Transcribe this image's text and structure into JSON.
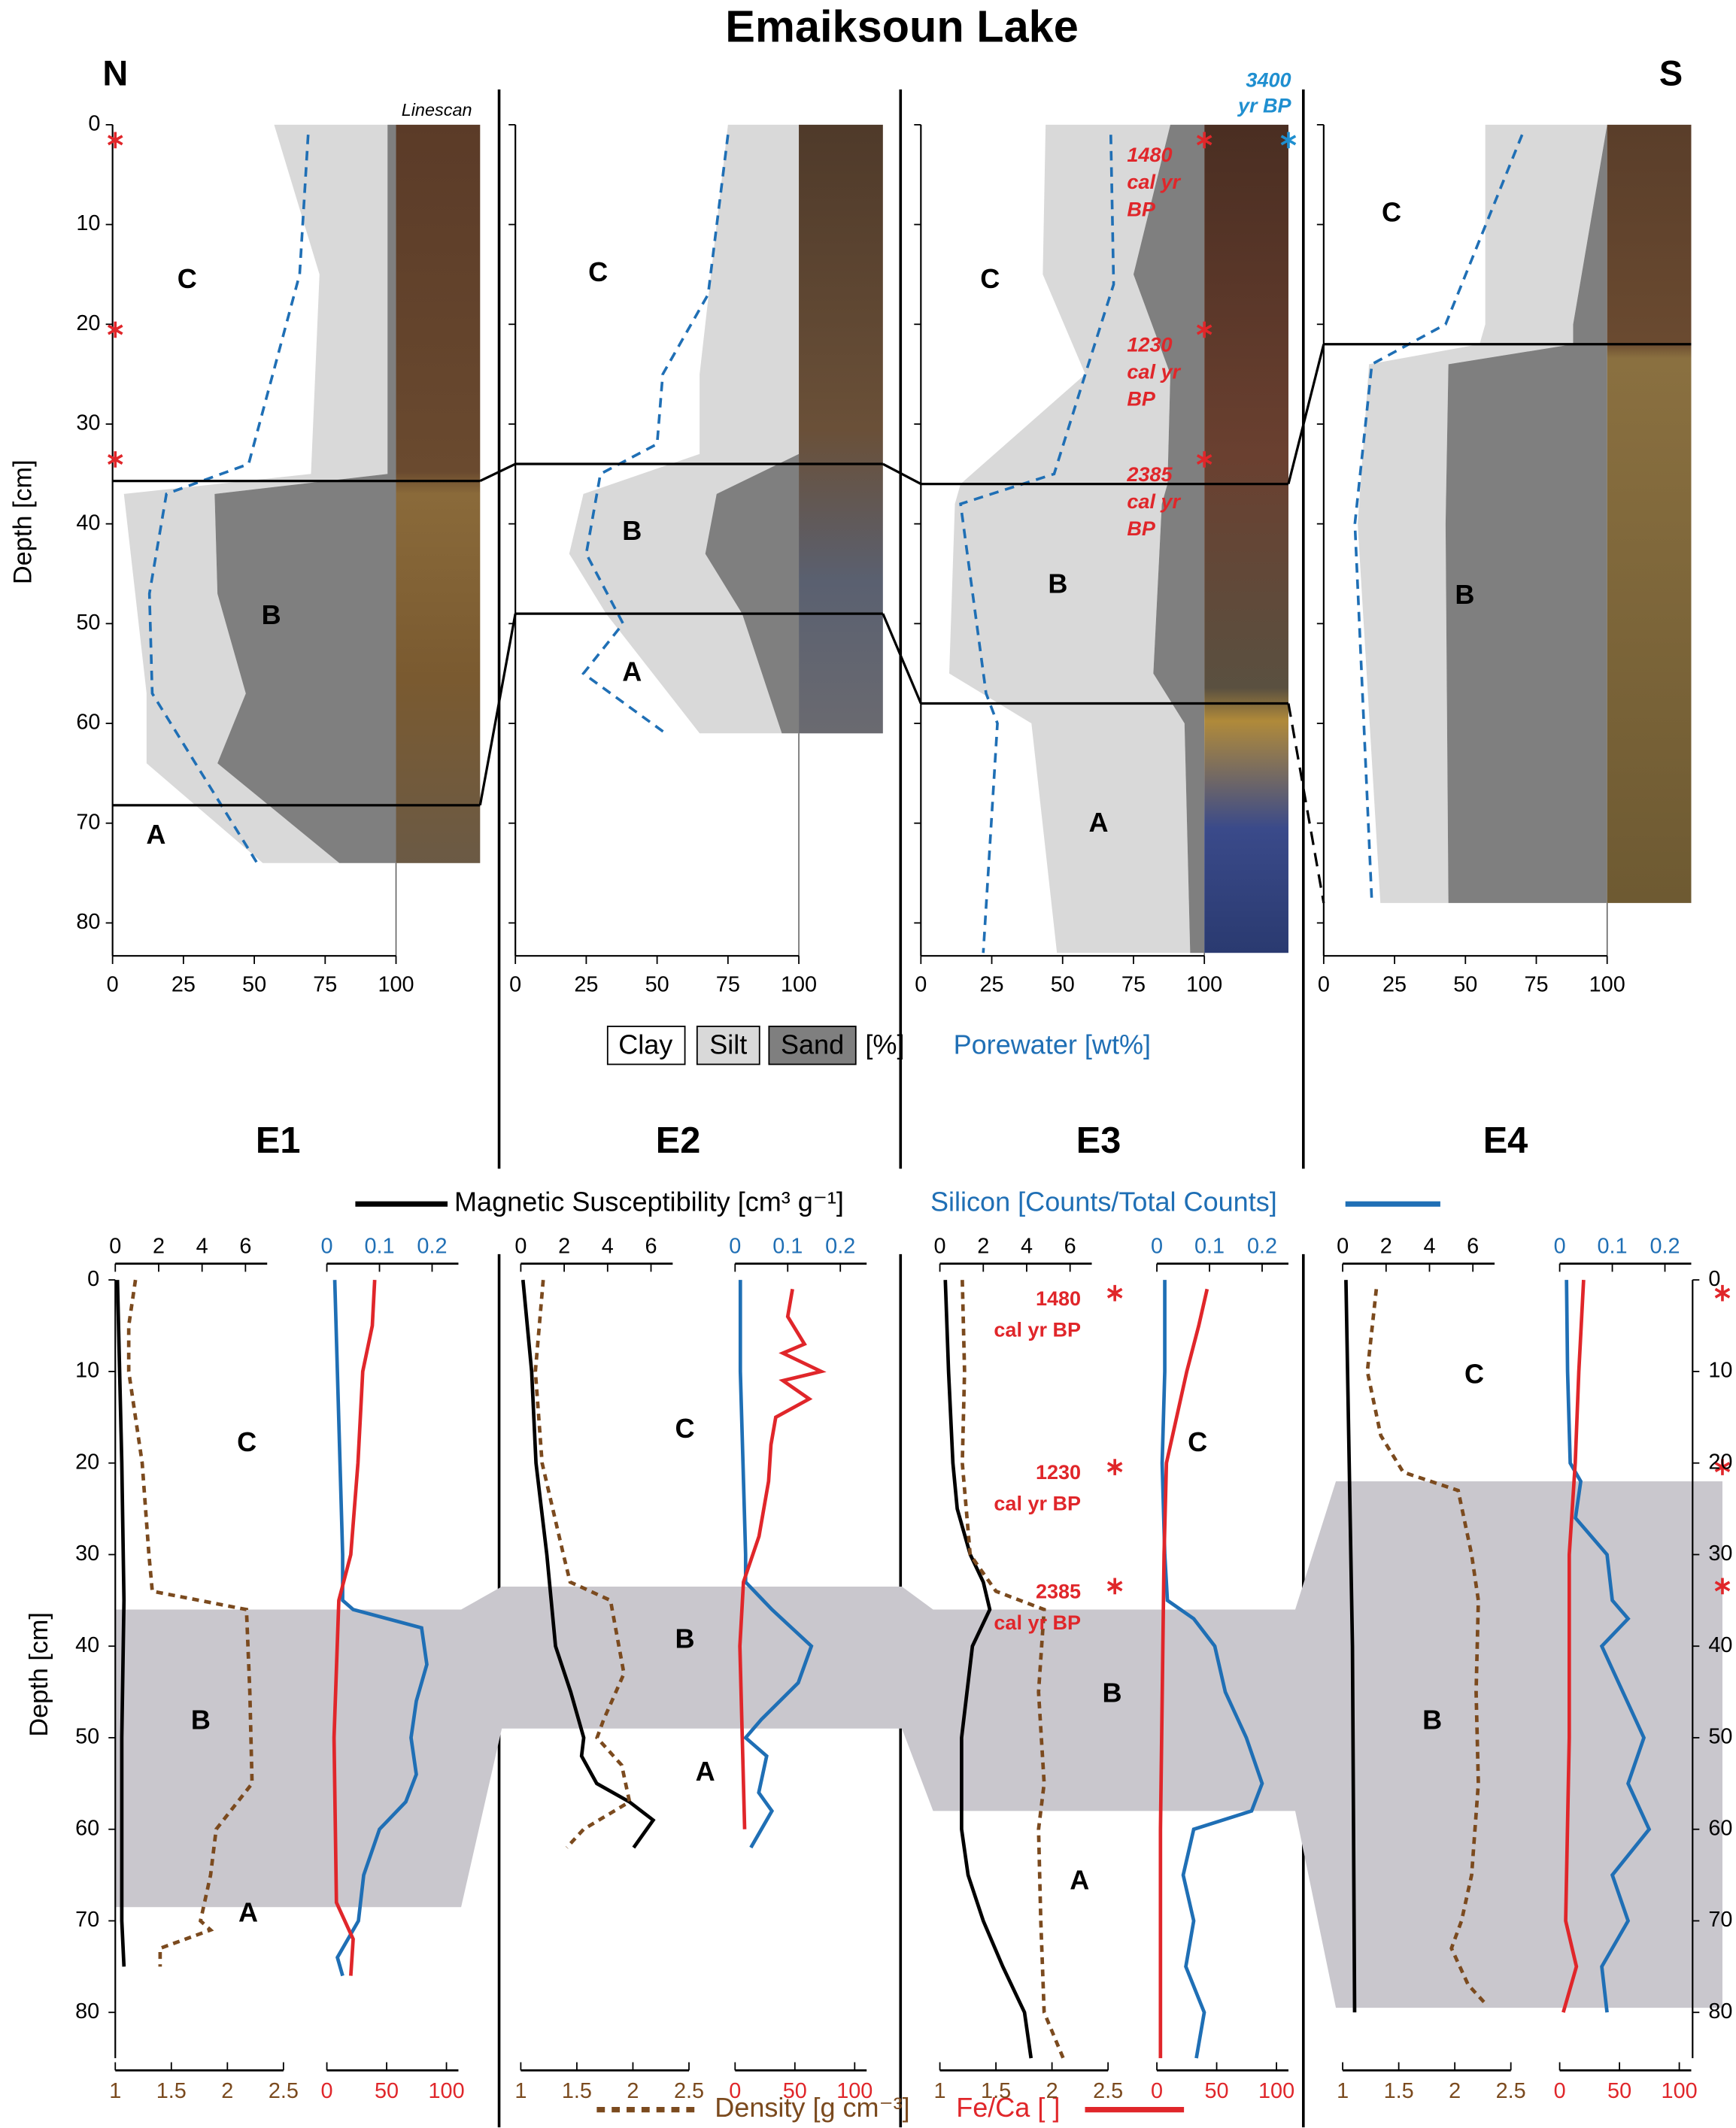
{
  "chart_data": {
    "type": "core_profiles",
    "title": "Emaiksoun Lake",
    "north": "N",
    "south": "S",
    "linescan": "Linescan",
    "top": {
      "y_label": "Depth [cm]",
      "xlim": [
        0,
        100
      ],
      "xticks": [
        0,
        25,
        50,
        75,
        100
      ],
      "ylim": [
        0,
        83.3
      ],
      "yticks": [
        0,
        10,
        20,
        30,
        40,
        50,
        60,
        70,
        80
      ],
      "legend": {
        "clay": "Clay",
        "silt": "Silt",
        "sand": "Sand",
        "unit": "[%]",
        "porewater": "Porewater [wt%]"
      },
      "colors": {
        "clay": "#ffffff",
        "silt": "#d9d9d9",
        "sand": "#7f7f7f",
        "porewater": "#1f6fb5",
        "date": "#e0262a",
        "date_blue": "#1f8fd0"
      },
      "cores": [
        {
          "name": "E1",
          "depths": [
            0,
            15,
            35,
            37,
            47,
            57,
            64,
            74
          ],
          "clay": [
            57,
            73,
            70,
            4,
            8,
            12,
            12,
            53
          ],
          "silt": [
            40,
            24,
            27,
            32,
            29,
            35,
            25,
            27
          ],
          "sand": [
            3,
            3,
            3,
            64,
            63,
            53,
            63,
            20
          ],
          "porewater_depths": [
            1,
            15,
            34,
            37,
            47,
            57,
            74
          ],
          "porewater": [
            69,
            66,
            48,
            19,
            13,
            14,
            51
          ],
          "boundaries": [
            35.7,
            68.2
          ],
          "zones": [
            "C",
            "B",
            "A"
          ],
          "dates": [
            {
              "depth": 1
            },
            {
              "depth": 20
            },
            {
              "depth": 33
            }
          ]
        },
        {
          "name": "E2",
          "depths": [
            0,
            25,
            33,
            37,
            43,
            49,
            61
          ],
          "clay": [
            75,
            65,
            65,
            24,
            19,
            32,
            65
          ],
          "silt": [
            25,
            35,
            35,
            47,
            48,
            48,
            29
          ],
          "sand": [
            0,
            0,
            0,
            29,
            33,
            20,
            6
          ],
          "porewater_depths": [
            1,
            17,
            25,
            32,
            35,
            43,
            50,
            55,
            61
          ],
          "porewater": [
            75,
            68,
            52,
            50,
            30,
            25,
            38,
            24,
            53
          ],
          "boundaries": [
            34,
            49
          ],
          "zones": [
            "C",
            "B",
            "A"
          ],
          "dates": []
        },
        {
          "name": "E3",
          "depths": [
            0,
            15,
            25,
            36,
            38,
            55,
            60,
            83
          ],
          "clay": [
            44,
            43,
            58,
            14,
            12,
            10,
            39,
            48
          ],
          "silt": [
            44,
            32,
            30,
            73,
            73,
            72,
            54,
            47
          ],
          "sand": [
            12,
            25,
            12,
            13,
            15,
            18,
            7,
            5
          ],
          "porewater_depths": [
            1,
            16,
            25,
            35,
            38,
            57,
            60,
            83
          ],
          "porewater": [
            67,
            68,
            58,
            47,
            14,
            23,
            27,
            22
          ],
          "boundaries": [
            36,
            58
          ],
          "zones": [
            "C",
            "B",
            "A"
          ],
          "dates": [
            {
              "depth": 1,
              "lines": [
                "1480",
                "cal yr",
                "BP"
              ]
            },
            {
              "depth": 20,
              "lines": [
                "1230",
                "cal yr",
                "BP"
              ]
            },
            {
              "depth": 33,
              "lines": [
                "2385",
                "cal yr",
                "BP"
              ]
            }
          ],
          "blue_date": {
            "depth": 1,
            "lines": [
              "3400",
              "yr BP"
            ]
          }
        },
        {
          "name": "E4",
          "depths": [
            0,
            20,
            22,
            24,
            40,
            78
          ],
          "clay": [
            57,
            57,
            55,
            16,
            12,
            20
          ],
          "silt": [
            43,
            31,
            33,
            28,
            31,
            24
          ],
          "sand": [
            0,
            12,
            12,
            56,
            57,
            56
          ],
          "porewater_depths": [
            1,
            20,
            24,
            40,
            78
          ],
          "porewater": [
            70,
            43,
            17,
            11,
            17
          ],
          "boundaries": [
            22
          ],
          "zones": [
            "C",
            "B"
          ],
          "dates": []
        }
      ]
    },
    "bottom": {
      "y_label": "Depth [cm]",
      "ylim": [
        0,
        85
      ],
      "yticks": [
        0,
        10,
        20,
        30,
        40,
        50,
        60,
        70,
        80
      ],
      "ms_lim": [
        0,
        7
      ],
      "ms_ticks": [
        0,
        2,
        4,
        6
      ],
      "density_lim": [
        1,
        2.5
      ],
      "density_ticks": [
        1,
        1.5,
        2,
        2.5
      ],
      "si_lim": [
        0,
        0.25
      ],
      "si_ticks": [
        0,
        0.1,
        0.2
      ],
      "feca_lim": [
        0,
        110
      ],
      "feca_ticks": [
        0,
        50,
        100
      ],
      "legend": {
        "ms": "Magnetic Susceptibility [cm³ g⁻¹]",
        "si": "Silicon [Counts/Total Counts]",
        "density": "Density [g cm⁻³]",
        "feca": "Fe/Ca [ ]"
      },
      "colors": {
        "ms": "#000000",
        "si": "#1f6fb5",
        "density": "#7b4a1e",
        "feca": "#e0262a",
        "zone": "#c9c7cd",
        "date": "#e0262a"
      },
      "cores": [
        {
          "zone": [
            36,
            68.5
          ],
          "zones": [
            "C",
            "B",
            "A"
          ],
          "ms": {
            "depths": [
              0,
              20,
              35,
              50,
              70,
              75
            ],
            "values": [
              0.1,
              0.3,
              0.4,
              0.3,
              0.3,
              0.4
            ]
          },
          "density": {
            "depths": [
              0,
              5,
              10,
              20,
              30,
              34,
              36,
              45,
              55,
              60,
              65,
              70,
              71,
              73,
              75
            ],
            "values": [
              1.18,
              1.12,
              1.12,
              1.24,
              1.3,
              1.33,
              2.17,
              2.2,
              2.22,
              1.9,
              1.85,
              1.76,
              1.85,
              1.4,
              1.4
            ]
          },
          "si": {
            "depths": [
              0,
              10,
              20,
              30,
              35,
              36,
              38,
              42,
              46,
              50,
              54,
              57,
              60,
              65,
              70,
              74,
              76
            ],
            "values": [
              0.015,
              0.02,
              0.025,
              0.03,
              0.03,
              0.05,
              0.18,
              0.19,
              0.17,
              0.16,
              0.17,
              0.15,
              0.1,
              0.07,
              0.06,
              0.02,
              0.03
            ]
          },
          "feca": {
            "depths": [
              0,
              5,
              10,
              20,
              30,
              35,
              50,
              68,
              72,
              76
            ],
            "values": [
              40,
              38,
              30,
              26,
              20,
              10,
              6,
              8,
              22,
              20
            ]
          },
          "dates": []
        },
        {
          "zone": [
            33.5,
            49
          ],
          "zones": [
            "C",
            "B",
            "A"
          ],
          "ms": {
            "depths": [
              0,
              10,
              20,
              30,
              35,
              40,
              45,
              50,
              52,
              55,
              57,
              59,
              62
            ],
            "values": [
              0.1,
              0.5,
              0.7,
              1.2,
              1.4,
              1.6,
              2.3,
              2.9,
              2.8,
              3.5,
              5,
              6.1,
              5.2
            ]
          },
          "density": {
            "depths": [
              0,
              10,
              20,
              30,
              33,
              35,
              43,
              48,
              50,
              53,
              57,
              60,
              62
            ],
            "values": [
              1.2,
              1.13,
              1.19,
              1.38,
              1.44,
              1.8,
              1.92,
              1.74,
              1.68,
              1.9,
              1.97,
              1.56,
              1.41
            ]
          },
          "si": {
            "depths": [
              0,
              10,
              20,
              30,
              33,
              36,
              40,
              44,
              48,
              50,
              52,
              56,
              58,
              62
            ],
            "values": [
              0.01,
              0.01,
              0.015,
              0.02,
              0.02,
              0.07,
              0.145,
              0.12,
              0.05,
              0.02,
              0.06,
              0.045,
              0.07,
              0.03
            ]
          },
          "feca": {
            "depths": [
              1,
              4,
              7,
              8,
              10,
              11,
              13,
              15,
              18,
              22,
              28,
              33,
              40,
              50,
              60
            ],
            "values": [
              48,
              44,
              58,
              40,
              72,
              40,
              62,
              34,
              30,
              28,
              20,
              7,
              4,
              6,
              8
            ]
          },
          "dates": []
        },
        {
          "zone": [
            36,
            58
          ],
          "zones": [
            "C",
            "B",
            "A"
          ],
          "ms": {
            "depths": [
              0,
              10,
              20,
              25,
              30,
              33,
              36,
              40,
              50,
              60,
              65,
              70,
              75,
              80,
              85
            ],
            "values": [
              0.25,
              0.4,
              0.6,
              0.8,
              1.4,
              2.0,
              2.3,
              1.5,
              1.0,
              1.0,
              1.3,
              2.0,
              2.9,
              3.9,
              4.2
            ]
          },
          "density": {
            "depths": [
              0,
              10,
              20,
              30,
              34,
              36,
              45,
              55,
              60,
              70,
              80,
              85
            ],
            "values": [
              1.2,
              1.22,
              1.2,
              1.27,
              1.5,
              1.93,
              1.88,
              1.93,
              1.88,
              1.9,
              1.93,
              2.1
            ]
          },
          "si": {
            "depths": [
              0,
              10,
              20,
              30,
              35,
              37,
              40,
              45,
              50,
              55,
              58,
              60,
              65,
              70,
              75,
              80,
              85
            ],
            "values": [
              0.015,
              0.015,
              0.01,
              0.015,
              0.02,
              0.07,
              0.11,
              0.13,
              0.17,
              0.2,
              0.18,
              0.07,
              0.05,
              0.07,
              0.055,
              0.09,
              0.075
            ]
          },
          "feca": {
            "depths": [
              1,
              5,
              10,
              20,
              30,
              40,
              60,
              85
            ],
            "values": [
              42,
              35,
              25,
              8,
              6,
              5,
              3,
              3
            ]
          },
          "dates": [
            {
              "depth": 1,
              "lines": [
                "1480",
                "cal yr BP"
              ]
            },
            {
              "depth": 20,
              "lines": [
                "1230",
                "cal yr BP"
              ]
            },
            {
              "depth": 33,
              "lines": [
                "2385",
                "cal yr BP"
              ]
            }
          ]
        },
        {
          "zone": [
            22,
            79.5
          ],
          "zones": [
            "C",
            "B"
          ],
          "ms": {
            "depths": [
              0,
              20,
              40,
              60,
              80
            ],
            "values": [
              0.15,
              0.3,
              0.45,
              0.5,
              0.55
            ]
          },
          "density": {
            "depths": [
              1,
              10,
              17,
              21,
              23,
              30,
              35,
              45,
              55,
              65,
              70,
              73,
              77,
              79
            ],
            "values": [
              1.3,
              1.22,
              1.34,
              1.54,
              2.03,
              2.15,
              2.21,
              2.19,
              2.21,
              2.15,
              2.06,
              1.97,
              2.12,
              2.27
            ]
          },
          "si": {
            "depths": [
              0,
              10,
              20,
              22,
              26,
              30,
              35,
              37,
              40,
              45,
              50,
              55,
              60,
              65,
              70,
              75,
              80
            ],
            "values": [
              0.013,
              0.015,
              0.02,
              0.04,
              0.03,
              0.09,
              0.1,
              0.13,
              0.08,
              0.12,
              0.16,
              0.13,
              0.17,
              0.1,
              0.13,
              0.08,
              0.09
            ]
          },
          "feca": {
            "depths": [
              0,
              10,
              20,
              30,
              50,
              70,
              75,
              80
            ],
            "values": [
              20,
              16,
              13,
              8,
              8,
              5,
              14,
              3
            ]
          },
          "dates": [
            {
              "depth": 1
            },
            {
              "depth": 20
            },
            {
              "depth": 33
            }
          ]
        }
      ]
    }
  }
}
